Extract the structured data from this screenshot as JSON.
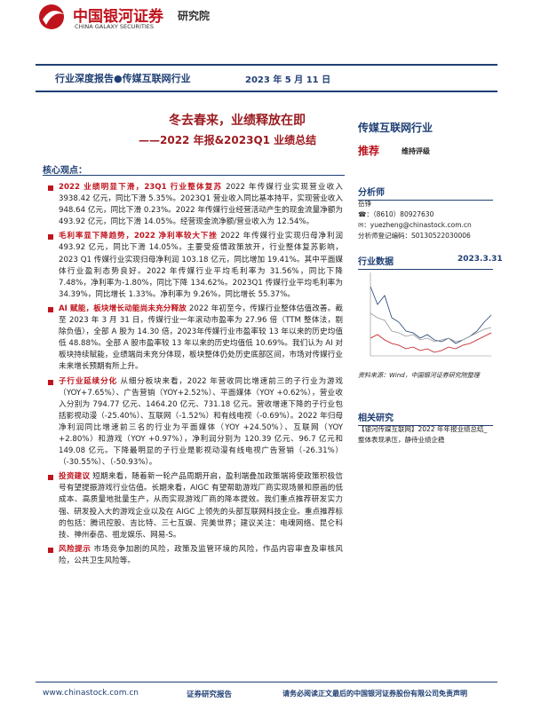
{
  "header": {
    "logo_cn": "中国银河证券",
    "logo_en": "CHINA GALAXY SECURITIES",
    "dept": "研究院"
  },
  "banner": {
    "label": "行业深度报告●传媒互联网行业",
    "date": "2023 年 5 月 11 日"
  },
  "title": {
    "main": "冬去春来，业绩释放在即",
    "sub": "——2022 年报&2023Q1 业绩总结"
  },
  "core_label": "核心观点：",
  "points": [
    {
      "heading": "2022 业绩明显下滑，23Q1 行业整体复苏",
      "text": " 2022 年传媒行业实现营业收入 3938.42 亿元，同比下滑 5.35%。2023Q1 营业收入同比基本持平，实现营业收入 948.64 亿元，同比下滑 0.23%。2022 年传媒行业经营活动产生的现金流量净额为 493.92 亿元，同比下滑 14.05%。经营现金流净额/营业收入为 12.54%。"
    },
    {
      "heading": "毛利率显下降趋势，2022 净利率较大下挫",
      "text": " 2022 年传媒行业实现归母净利润 493.92 亿元，同比下滑 14.05%。主要受疫情政策放开，行业整体复苏影响，2023 Q1 传媒行业实现归母净利润 103.18 亿元，同比增加 19.41%。其中平面媒体行业盈利态势良好。2022 年传媒行业平均毛利率为 31.56%，同比下降 7.48%，净利率为-1.80%，同比下降 134.62%。2023Q1 传媒行业平均毛利率为 34.39%，同比增长 1.33%。净利率为 9.26%，同比增长 55.37%。"
    },
    {
      "heading": "AI 赋能，板块增长动能尚未充分释放",
      "text": " 2022 年初至今，传媒行业整体估值改善。截至 2023 年 3 月 31 日，传媒行业一年滚动市盈率为 27.96 倍（TTM 整体法，剔除负值），全部 A 股为 14.30 倍，2023年传媒行业市盈率较 13 年以来的历史均值低 48.88%。全部 A 股市盈率较 13 年以来的历史均值低 10.69%。我们认为 AI 对板块持续赋能，业绩端尚未充分体现，板块整体仍处历史底部区间，市场对传媒行业未来增长预期有所上升。"
    },
    {
      "heading": "子行业延续分化",
      "text": " 从细分板块来看，2022 年营收同比增速前三的子行业为游戏（YOY+7.65%）、广告营销（YOY+2.52%）、平面媒体（YOY +0.62%），营业收入分别为 794.77 亿元、1464.20 亿元、731.18 亿元。营收增速下降的子行业包括影视动漫（-25.40%）、互联网（-1.52%）和有线电视（-0.69%）。2022 年归母净利润同比增速前三名的行业为平面媒体（YOY +24.50%）、互联网（YOY +2.80%）和游戏（YOY +0.97%），净利润分别为 120.39 亿元、96.7 亿元和 149.08 亿元。下降最明显的子行业是影视动漫有线电视广告营销（-26.31%）（-30.55%）、（-50.93%）。"
    },
    {
      "heading": "投资建议",
      "text": " 短期来看，随着新一轮产品周期开启，盈利端叠加政策端将使政策积极信号有望提振游戏行业估值。长期来看，AIGC 有望帮助游戏厂商实现场景和原画的低成本、高质量地批量生产，从而实现游戏厂商的降本提效。我们重点推荐研发实力强、研发投入大的游戏企业以及在 AIGC 上领先的头部互联网科技企业。重点推荐标的包括：腾讯控股、吉比特、三七互娱、完美世界；建议关注：电魂网络、昆仑科技、神州泰岳、祖龙娱乐、网易-S。"
    },
    {
      "heading": "风险提示",
      "text": " 市场竞争加剧的风险，政策及监管环境的风险，作品内容审查及审核风险，公共卫生风险等。"
    }
  ],
  "sidebar": {
    "industry": "传媒互联网行业",
    "rating": "推荐",
    "rating_note": "维持评级",
    "analyst_label": "分析师",
    "analyst": "岳铮",
    "phone": "☎：（8610）80927630",
    "email": "✉：yuezheng@chinastock.com.cn",
    "license": "分析师登记编码：S0130522030006",
    "data_label": "行业数据",
    "data_date": "2023.3.31",
    "source": "资料来源：Wind，中国银河证券研究院整理",
    "related_label": "相关研究",
    "related": "【银河传媒互联网】2022 年年报业绩总结_整体表现承压，静待业绩企稳"
  },
  "footer": {
    "url": "www.chinastock.com.cn",
    "type": "证券研究报告",
    "disclaimer": "请务必阅读正文最后的中国银河证券股份有限公司免责声明"
  }
}
